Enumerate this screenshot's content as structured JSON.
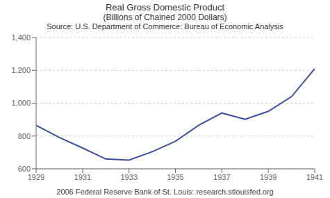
{
  "chart_data": {
    "type": "line",
    "title": "Real Gross Domestic Product",
    "subtitle": "(Billions of Chained 2000 Dollars)",
    "source": "Source: U.S. Department of Commerce: Bureau of Economic Analysis",
    "footer": "2006 Federal Reserve Bank of St. Louis: research.stlouisfed.org",
    "x": [
      1929,
      1930,
      1931,
      1932,
      1933,
      1934,
      1935,
      1936,
      1937,
      1938,
      1939,
      1940,
      1941
    ],
    "values": [
      865,
      791,
      727,
      660,
      653,
      704,
      768,
      865,
      940,
      902,
      950,
      1040,
      1210
    ],
    "color": "#3d4fa0",
    "xlim": [
      1929,
      1941
    ],
    "xticks": [
      1929,
      1931,
      1933,
      1935,
      1937,
      1939,
      1941
    ],
    "ylim": [
      600,
      1400
    ],
    "yticks": [
      600,
      800,
      {
        "value": 1000,
        "label": "1,000"
      },
      {
        "value": 1200,
        "label": "1,200"
      },
      {
        "value": 1400,
        "label": "1,400"
      }
    ],
    "grid": "y"
  }
}
